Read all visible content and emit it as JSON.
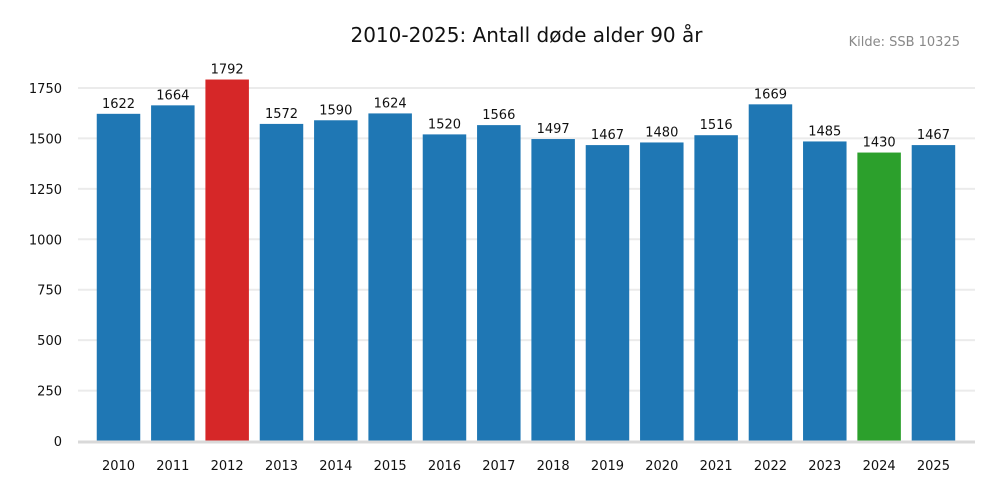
{
  "header": {
    "title": "2010-2025: Antall døde alder 90 år",
    "source": "Kilde: SSB 10325"
  },
  "colors": {
    "default": "#1f77b4",
    "max": "#d62728",
    "min": "#2ca02c",
    "grid": "#ebebeb",
    "axis": "#d9d9d9"
  },
  "chart_data": {
    "type": "bar",
    "title": "2010-2025: Antall døde alder 90 år",
    "subtitle": "Kilde: SSB 10325",
    "xlabel": "",
    "ylabel": "",
    "categories": [
      "2010",
      "2011",
      "2012",
      "2013",
      "2014",
      "2015",
      "2016",
      "2017",
      "2018",
      "2019",
      "2020",
      "2021",
      "2022",
      "2023",
      "2024",
      "2025"
    ],
    "values": [
      1622,
      1664,
      1792,
      1572,
      1590,
      1624,
      1520,
      1566,
      1497,
      1467,
      1480,
      1516,
      1669,
      1485,
      1430,
      1467
    ],
    "highlight": {
      "2012": "max",
      "2024": "min"
    },
    "yticks": [
      0,
      250,
      500,
      750,
      1000,
      1250,
      1500,
      1750
    ],
    "ylim": [
      0,
      1850
    ],
    "grid": "horizontal",
    "legend": "none",
    "data_labels": true
  }
}
